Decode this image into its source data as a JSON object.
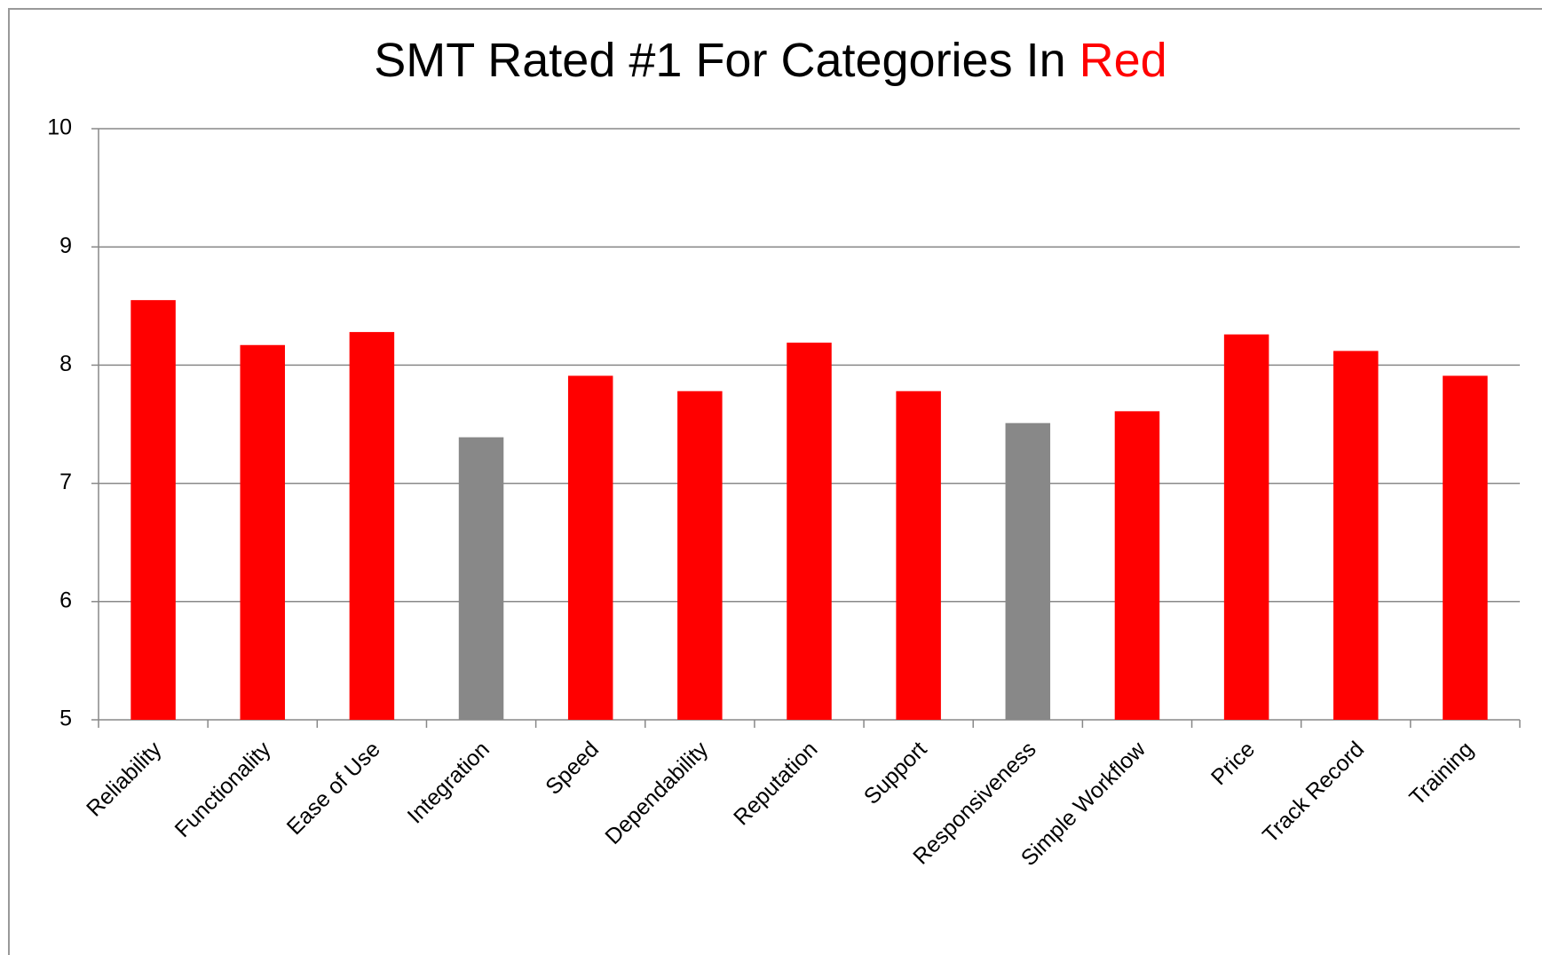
{
  "chart_data": {
    "type": "bar",
    "title_parts": [
      {
        "text": "SMT Rated #1 For Categories In",
        "color": "#000000"
      },
      {
        "text": "Red",
        "color": "#ff0000"
      }
    ],
    "categories": [
      "Reliability",
      "Functionality",
      "Ease of Use",
      "Integration",
      "Speed",
      "Dependability",
      "Reputation",
      "Support",
      "Responsiveness",
      "Simple Workflow",
      "Price",
      "Track Record",
      "Training"
    ],
    "values": [
      8.55,
      8.17,
      8.28,
      7.39,
      7.91,
      7.78,
      8.19,
      7.78,
      7.51,
      7.61,
      8.26,
      8.12,
      7.91
    ],
    "colors": [
      "#ff0000",
      "#ff0000",
      "#ff0000",
      "#888888",
      "#ff0000",
      "#ff0000",
      "#ff0000",
      "#ff0000",
      "#888888",
      "#ff0000",
      "#ff0000",
      "#ff0000",
      "#ff0000"
    ],
    "ylim": [
      5,
      10
    ],
    "yticks": [
      5,
      6,
      7,
      8,
      9,
      10
    ],
    "grid": true
  }
}
